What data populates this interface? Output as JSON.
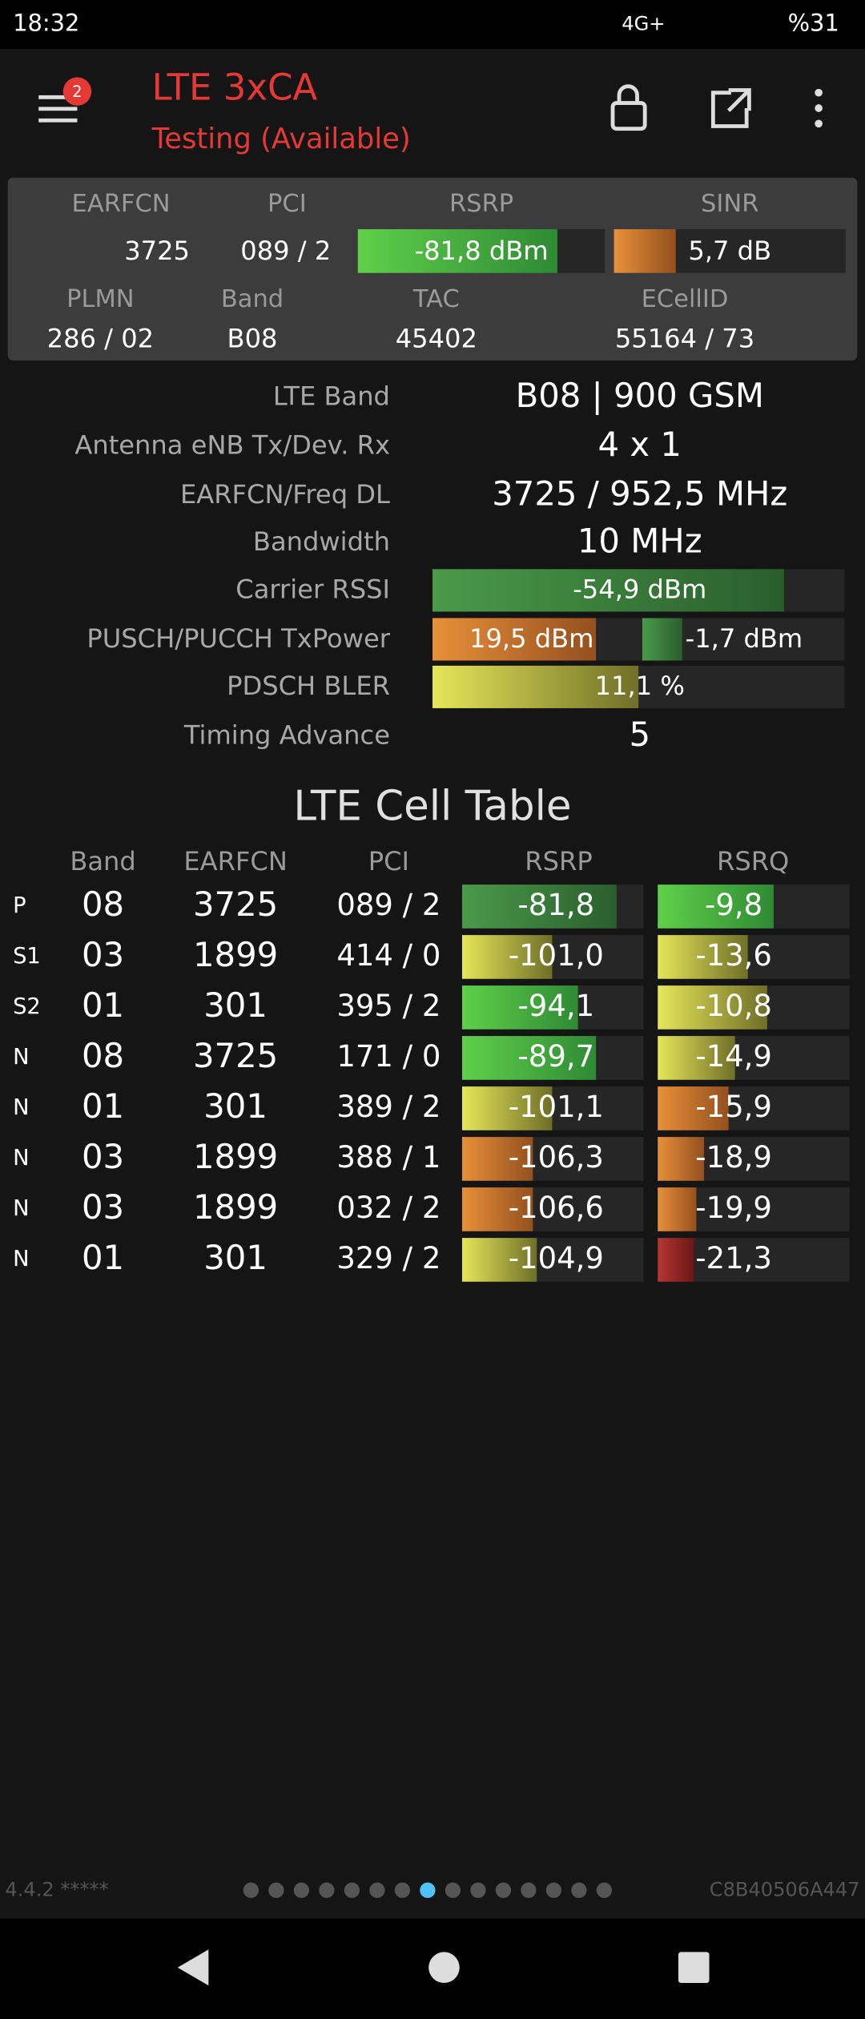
{
  "status_bar": {
    "time": "18:32",
    "network": "4G+",
    "battery": "%31"
  },
  "header": {
    "title": "LTE 3xCA",
    "subtitle": "Testing (Available)",
    "badge": "2"
  },
  "summary": {
    "labels": [
      "EARFCN",
      "PCI",
      "RSRP",
      "SINR"
    ],
    "values": [
      "3725",
      "089 / 2",
      "-81,8 dBm",
      "5,7 dB"
    ],
    "labels2": [
      "PLMN",
      "Band",
      "TAC",
      "ECellID"
    ],
    "values2": [
      "286 / 02",
      "B08",
      "45402",
      "55164 / 73"
    ]
  },
  "details": [
    {
      "label": "LTE Band",
      "value": "B08 | 900 GSM"
    },
    {
      "label": "Antenna eNB Tx/Dev. Rx",
      "value": "4 x 1"
    },
    {
      "label": "EARFCN/Freq DL",
      "value": "3725 / 952,5 MHz"
    },
    {
      "label": "Bandwidth",
      "value": "10 MHz"
    },
    {
      "label": "Carrier RSSI",
      "value": "-54,9 dBm"
    },
    {
      "label": "PUSCH/PUCCH TxPower",
      "value": "19,5 dBm",
      "value2": "-1,7 dBm"
    },
    {
      "label": "PDSCH BLER",
      "value": "11,1 %"
    },
    {
      "label": "Timing Advance",
      "value": "5"
    }
  ],
  "cell_table": {
    "title": "LTE Cell Table",
    "headers": [
      "Band",
      "EARFCN",
      "PCI",
      "RSRP",
      "RSRQ"
    ],
    "rows": [
      [
        "P",
        "08",
        "3725",
        "089 / 2",
        "-81,8",
        "-9,8"
      ],
      [
        "S1",
        "03",
        "1899",
        "414 / 0",
        "-101,0",
        "-13,6"
      ],
      [
        "S2",
        "01",
        "301",
        "395 / 2",
        "-94,1",
        "-10,8"
      ],
      [
        "N",
        "08",
        "3725",
        "171 / 0",
        "-89,7",
        "-14,9"
      ],
      [
        "N",
        "01",
        "301",
        "389 / 2",
        "-101,1",
        "-15,9"
      ],
      [
        "N",
        "03",
        "1899",
        "388 / 1",
        "-106,3",
        "-18,9"
      ],
      [
        "N",
        "03",
        "1899",
        "032 / 2",
        "-106,6",
        "-19,9"
      ],
      [
        "N",
        "01",
        "301",
        "329 / 2",
        "-104,9",
        "-21,3"
      ]
    ]
  },
  "footer": {
    "version": "4.4.2 *****",
    "device_id": "C8B40506A447"
  }
}
